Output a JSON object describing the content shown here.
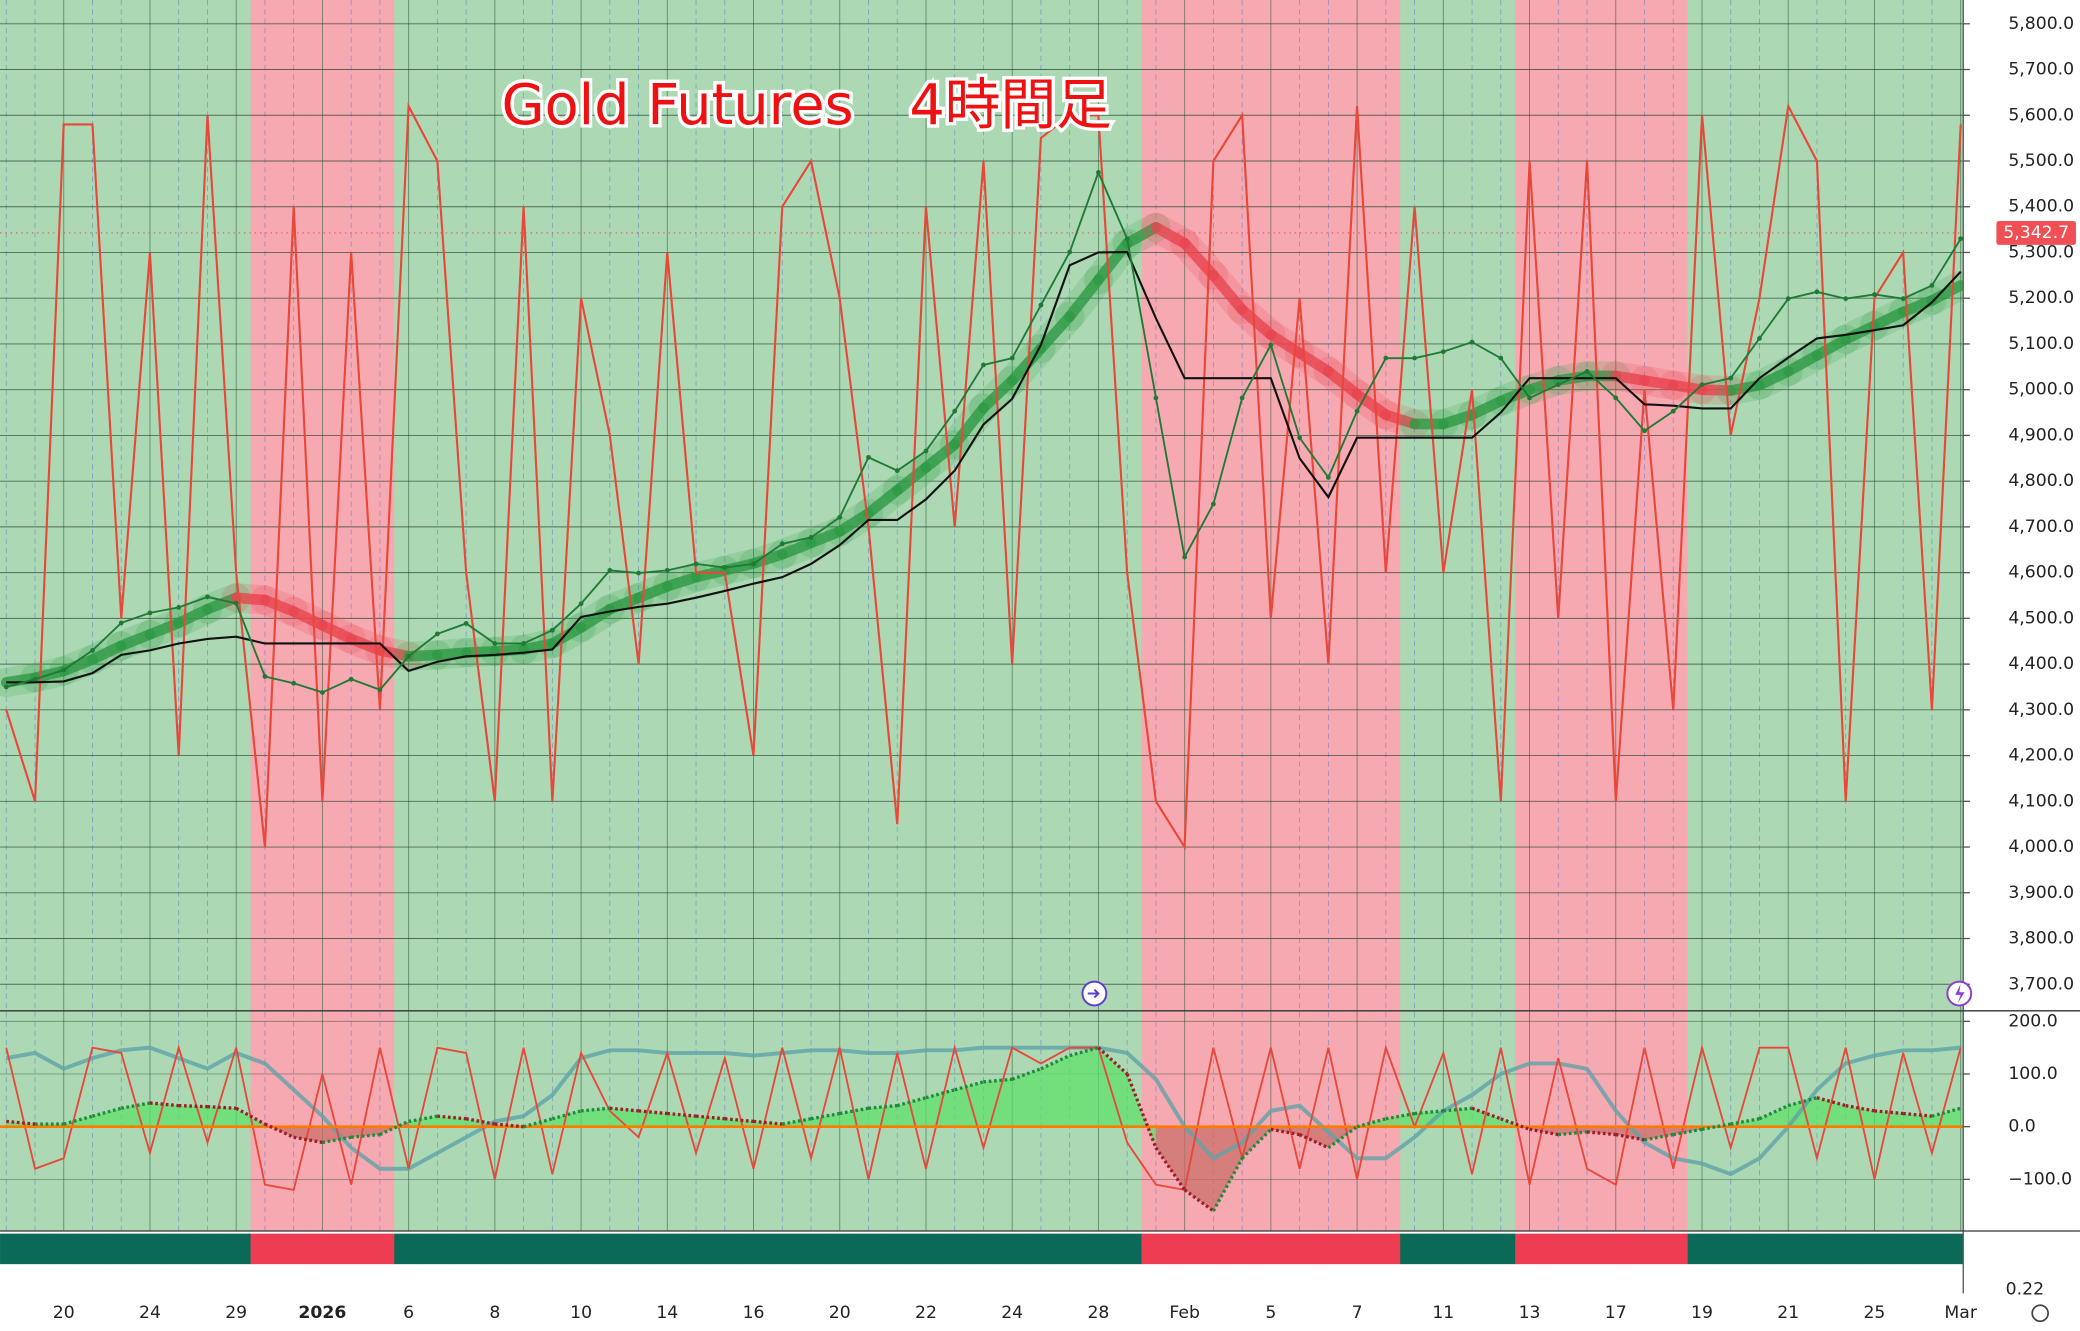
{
  "chart_data": {
    "type": "line",
    "title": "Gold Futures　4時間足",
    "categories": [
      null,
      null,
      "20",
      null,
      null,
      "24",
      null,
      null,
      "29",
      null,
      null,
      "2026",
      null,
      null,
      "6",
      null,
      null,
      "8",
      null,
      null,
      "10",
      null,
      null,
      "14",
      null,
      null,
      "16",
      null,
      null,
      "20",
      null,
      null,
      "22",
      null,
      null,
      "24",
      null,
      null,
      "28",
      null,
      null,
      "Feb",
      null,
      null,
      "5",
      null,
      null,
      "7",
      null,
      null,
      "11",
      null,
      null,
      "13",
      null,
      null,
      "17",
      null,
      null,
      "19",
      null,
      null,
      "21",
      null,
      null,
      "25",
      null,
      null,
      "Mar"
    ],
    "regime": [
      "up",
      "up",
      "up",
      "up",
      "up",
      "up",
      "up",
      "up",
      "up",
      "down",
      "down",
      "down",
      "down",
      "down",
      "up",
      "up",
      "up",
      "up",
      "up",
      "up",
      "up",
      "up",
      "up",
      "up",
      "up",
      "up",
      "up",
      "up",
      "up",
      "up",
      "up",
      "up",
      "up",
      "up",
      "up",
      "up",
      "up",
      "up",
      "up",
      "up",
      "down",
      "down",
      "down",
      "down",
      "down",
      "down",
      "down",
      "down",
      "down",
      "up",
      "up",
      "up",
      "up",
      "down",
      "down",
      "down",
      "down",
      "down",
      "down",
      "up",
      "up",
      "up",
      "up",
      "up",
      "up",
      "up",
      "up",
      "up",
      "up"
    ],
    "regime_colors": {
      "up": "#acd9b4",
      "down": "#f6a9b1"
    },
    "strip_colors": {
      "up": "#0b6a57",
      "down": "#ee3d52"
    },
    "ylim": [
      3642,
      5852
    ],
    "yticks": [
      {
        "value": 3700,
        "label": "3,700.0"
      },
      {
        "value": 3800,
        "label": "3,800.0"
      },
      {
        "value": 3900,
        "label": "3,900.0"
      },
      {
        "value": 4000,
        "label": "4,000.0"
      },
      {
        "value": 4100,
        "label": "4,100.0"
      },
      {
        "value": 4200,
        "label": "4,200.0"
      },
      {
        "value": 4300,
        "label": "4,300.0"
      },
      {
        "value": 4400,
        "label": "4,400.0"
      },
      {
        "value": 4500,
        "label": "4,500.0"
      },
      {
        "value": 4600,
        "label": "4,600.0"
      },
      {
        "value": 4700,
        "label": "4,700.0"
      },
      {
        "value": 4800,
        "label": "4,800.0"
      },
      {
        "value": 4900,
        "label": "4,900.0"
      },
      {
        "value": 5000,
        "label": "5,000.0"
      },
      {
        "value": 5100,
        "label": "5,100.0"
      },
      {
        "value": 5200,
        "label": "5,200.0"
      },
      {
        "value": 5300,
        "label": "5,300.0"
      },
      {
        "value": 5400,
        "label": "5,400.0"
      },
      {
        "value": 5500,
        "label": "5,500.0"
      },
      {
        "value": 5600,
        "label": "5,600.0"
      },
      {
        "value": 5700,
        "label": "5,700.0"
      },
      {
        "value": 5800,
        "label": "5,800.0"
      }
    ],
    "grid": true,
    "last_price": {
      "value": 5342.7,
      "label": "5,342.7",
      "color": "#ef4f55"
    },
    "price": {
      "color": "#1f7a36",
      "values": [
        4350,
        4367,
        4387,
        4430,
        4490,
        4512,
        4524,
        4547,
        4533,
        4373,
        4358,
        4338,
        4367,
        4344,
        4417,
        4466,
        4489,
        4445,
        4445,
        4474,
        4532,
        4605,
        4599,
        4605,
        4619,
        4611,
        4619,
        4663,
        4677,
        4721,
        4852,
        4823,
        4866,
        4953,
        5054,
        5069,
        5185,
        5301,
        5475,
        5330,
        4982,
        4634,
        4750,
        4982,
        5098,
        4895,
        4808,
        4953,
        5069,
        5069,
        5083,
        5104,
        5069,
        4982,
        5011,
        5040,
        4982,
        4910,
        4953,
        5011,
        5025,
        5112,
        5199,
        5214,
        5199,
        5208,
        5199,
        5228,
        5330
      ]
    },
    "stop_line": {
      "color": "#111111",
      "values": [
        4360,
        4360,
        4362,
        4380,
        4420,
        4430,
        4445,
        4455,
        4460,
        4445,
        4445,
        4445,
        4445,
        4445,
        4385,
        4405,
        4417,
        4420,
        4425,
        4432,
        4503,
        4515,
        4525,
        4532,
        4545,
        4560,
        4576,
        4590,
        4619,
        4660,
        4715,
        4715,
        4760,
        4823,
        4924,
        4980,
        5098,
        5272,
        5300,
        5301,
        5156,
        5025,
        5025,
        5025,
        5025,
        4850,
        4765,
        4895,
        4895,
        4895,
        4895,
        4895,
        4950,
        5025,
        5025,
        5025,
        5025,
        4968,
        4965,
        4959,
        4959,
        5025,
        5070,
        5112,
        5120,
        5130,
        5141,
        5191,
        5258
      ]
    },
    "moving_average": {
      "up_color": "#2e9a45",
      "down_color": "#e8454f",
      "values": [
        4360,
        4370,
        4385,
        4410,
        4440,
        4465,
        4490,
        4520,
        4545,
        4540,
        4515,
        4485,
        4455,
        4430,
        4417,
        4420,
        4425,
        4428,
        4432,
        4445,
        4480,
        4520,
        4545,
        4570,
        4590,
        4605,
        4620,
        4640,
        4665,
        4690,
        4730,
        4780,
        4830,
        4880,
        4960,
        5020,
        5090,
        5160,
        5240,
        5320,
        5355,
        5320,
        5250,
        5175,
        5120,
        5080,
        5040,
        4990,
        4945,
        4925,
        4925,
        4945,
        4975,
        5000,
        5020,
        5030,
        5030,
        5020,
        5010,
        5000,
        4998,
        5010,
        5040,
        5075,
        5110,
        5140,
        5170,
        5195,
        5228
      ]
    },
    "oscillator": {
      "color": "#e8473a",
      "values": [
        4300,
        4100,
        5580,
        5580,
        4500,
        5300,
        4200,
        5600,
        4600,
        4000,
        5400,
        4100,
        5300,
        4300,
        5620,
        5500,
        4600,
        4100,
        5400,
        4100,
        5200,
        4900,
        4400,
        5300,
        4600,
        4600,
        4200,
        5400,
        5500,
        5200,
        4700,
        4050,
        5400,
        4700,
        5500,
        4400,
        5550,
        5600,
        5600,
        4600,
        4100,
        4000,
        5500,
        5600,
        4500,
        5200,
        4400,
        5620,
        4600,
        5400,
        4600,
        5000,
        4100,
        5500,
        4500,
        5500,
        4100,
        5000,
        4300,
        5600,
        4900,
        5200,
        5620,
        5500,
        4100,
        5200,
        5300,
        4300,
        5580
      ]
    },
    "indicator": {
      "ylim": [
        -198,
        220
      ],
      "yticks": [
        {
          "value": 200,
          "label": "200.0"
        },
        {
          "value": 100,
          "label": "100.0"
        },
        {
          "value": 0,
          "label": "0.0"
        },
        {
          "value": -100,
          "label": "−100.0"
        }
      ],
      "zero_color": "#ff7a00",
      "trend": {
        "up_color": "#5fe06a",
        "down_color": "#c9706b",
        "line_up": "#1f8a3a",
        "line_down": "#9a1f2a",
        "values": [
          10,
          5,
          5,
          20,
          35,
          45,
          40,
          38,
          35,
          5,
          -20,
          -30,
          -20,
          -15,
          10,
          20,
          15,
          5,
          0,
          15,
          30,
          35,
          30,
          25,
          20,
          15,
          10,
          5,
          15,
          25,
          35,
          40,
          55,
          70,
          85,
          90,
          110,
          135,
          150,
          100,
          -40,
          -120,
          -160,
          -60,
          -5,
          -15,
          -40,
          0,
          15,
          25,
          30,
          35,
          15,
          -5,
          -15,
          -10,
          -15,
          -25,
          -15,
          -5,
          5,
          15,
          40,
          55,
          40,
          30,
          25,
          20,
          35
        ]
      },
      "oscillator": {
        "color": "#e8473a",
        "values": [
          150,
          -80,
          -60,
          150,
          140,
          -50,
          150,
          -30,
          150,
          -110,
          -120,
          100,
          -110,
          150,
          -80,
          150,
          140,
          -100,
          150,
          -90,
          140,
          30,
          -20,
          140,
          -50,
          130,
          -80,
          150,
          -60,
          150,
          -100,
          140,
          -80,
          150,
          -40,
          150,
          120,
          150,
          150,
          -30,
          -110,
          -120,
          150,
          -60,
          150,
          -80,
          150,
          -100,
          150,
          0,
          140,
          -90,
          150,
          -110,
          130,
          -80,
          -110,
          150,
          -80,
          150,
          -40,
          150,
          150,
          -60,
          150,
          -100,
          140,
          -50,
          150
        ]
      },
      "smooth": {
        "color": "#5fa3a8",
        "values": [
          130,
          140,
          110,
          130,
          145,
          150,
          130,
          110,
          140,
          120,
          70,
          20,
          -40,
          -80,
          -80,
          -50,
          -20,
          10,
          20,
          60,
          130,
          145,
          145,
          140,
          140,
          140,
          135,
          140,
          145,
          145,
          140,
          140,
          145,
          145,
          150,
          150,
          150,
          150,
          150,
          140,
          90,
          0,
          -60,
          -30,
          30,
          40,
          -10,
          -60,
          -60,
          -20,
          30,
          60,
          100,
          120,
          120,
          110,
          30,
          -30,
          -60,
          -70,
          -90,
          -60,
          0,
          70,
          120,
          135,
          145,
          145,
          150
        ]
      }
    },
    "lower_label": "0.22"
  }
}
